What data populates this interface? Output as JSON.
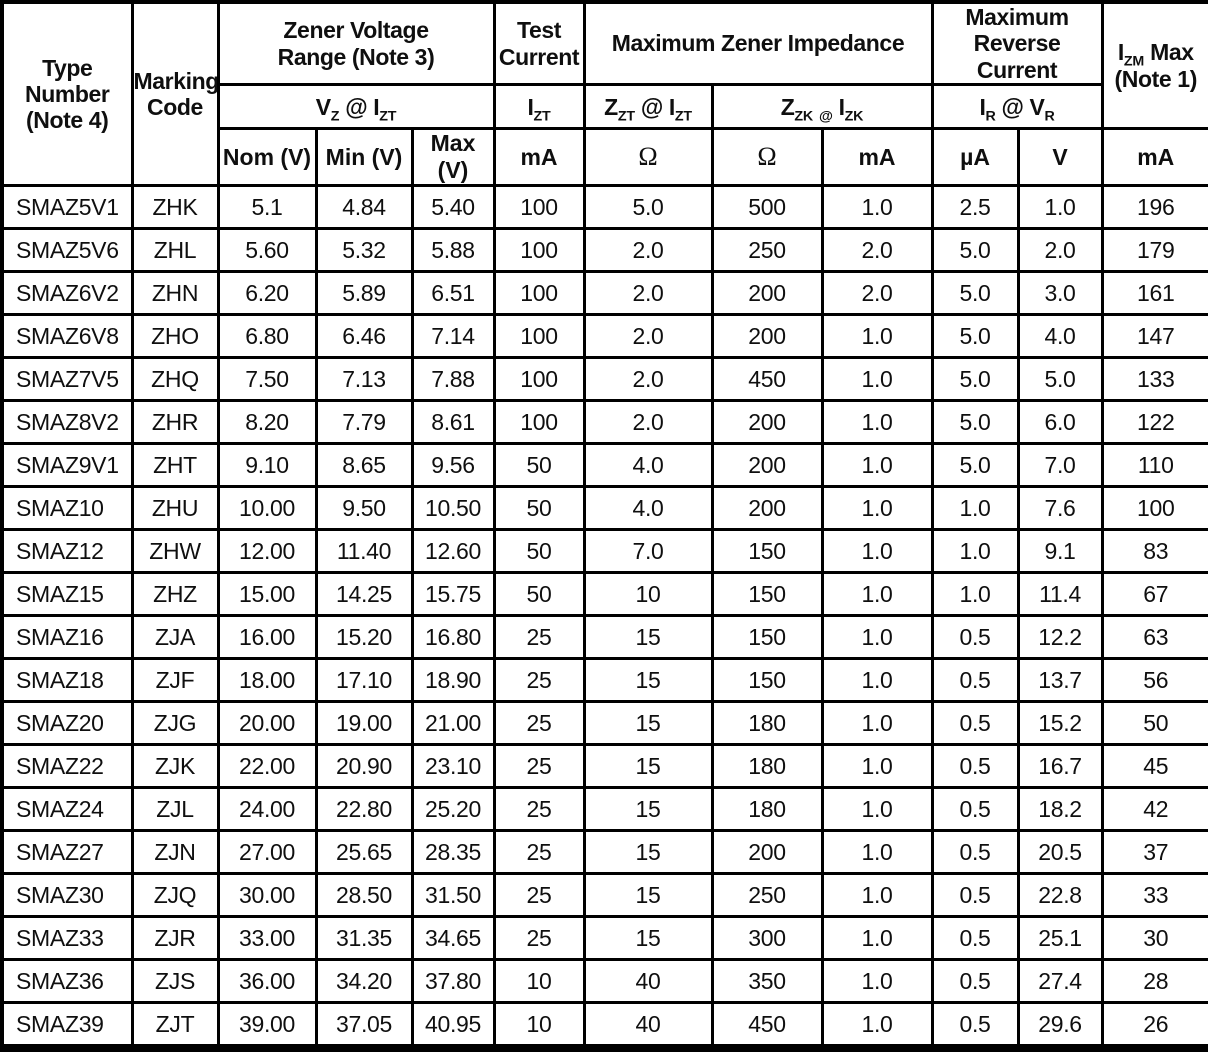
{
  "table": {
    "header": {
      "type_number": "Type\nNumber\n(Note 4)",
      "marking_code": "Marking\nCode",
      "zener_voltage_range": "Zener Voltage\nRange (Note 3)",
      "vz_at_izt": "V_{Z} @ I_{ZT}",
      "test_current": "Test\nCurrent",
      "izt": "I_{ZT}",
      "max_zener_impedance": "Maximum Zener Impedance",
      "zzt_at_izt": "Z_{ZT} @ I_{ZT}",
      "zzk_at_izk": "Z_{ZK} _{@} I_{ZK}",
      "max_reverse_current": "Maximum\nReverse Current",
      "ir_at_vr": "I_{R} @ V_{R}",
      "izm_max": "I_{ZM} Max\n(Note 1)",
      "units": [
        "Nom (V)",
        "Min (V)",
        "Max (V)",
        "mA",
        "Ω",
        "Ω",
        "mA",
        "µA",
        "V",
        "mA"
      ]
    },
    "rows": [
      [
        "SMAZ5V1",
        "ZHK",
        "5.1",
        "4.84",
        "5.40",
        "100",
        "5.0",
        "500",
        "1.0",
        "2.5",
        "1.0",
        "196"
      ],
      [
        "SMAZ5V6",
        "ZHL",
        "5.60",
        "5.32",
        "5.88",
        "100",
        "2.0",
        "250",
        "2.0",
        "5.0",
        "2.0",
        "179"
      ],
      [
        "SMAZ6V2",
        "ZHN",
        "6.20",
        "5.89",
        "6.51",
        "100",
        "2.0",
        "200",
        "2.0",
        "5.0",
        "3.0",
        "161"
      ],
      [
        "SMAZ6V8",
        "ZHO",
        "6.80",
        "6.46",
        "7.14",
        "100",
        "2.0",
        "200",
        "1.0",
        "5.0",
        "4.0",
        "147"
      ],
      [
        "SMAZ7V5",
        "ZHQ",
        "7.50",
        "7.13",
        "7.88",
        "100",
        "2.0",
        "450",
        "1.0",
        "5.0",
        "5.0",
        "133"
      ],
      [
        "SMAZ8V2",
        "ZHR",
        "8.20",
        "7.79",
        "8.61",
        "100",
        "2.0",
        "200",
        "1.0",
        "5.0",
        "6.0",
        "122"
      ],
      [
        "SMAZ9V1",
        "ZHT",
        "9.10",
        "8.65",
        "9.56",
        "50",
        "4.0",
        "200",
        "1.0",
        "5.0",
        "7.0",
        "110"
      ],
      [
        "SMAZ10",
        "ZHU",
        "10.00",
        "9.50",
        "10.50",
        "50",
        "4.0",
        "200",
        "1.0",
        "1.0",
        "7.6",
        "100"
      ],
      [
        "SMAZ12",
        "ZHW",
        "12.00",
        "11.40",
        "12.60",
        "50",
        "7.0",
        "150",
        "1.0",
        "1.0",
        "9.1",
        "83"
      ],
      [
        "SMAZ15",
        "ZHZ",
        "15.00",
        "14.25",
        "15.75",
        "50",
        "10",
        "150",
        "1.0",
        "1.0",
        "11.4",
        "67"
      ],
      [
        "SMAZ16",
        "ZJA",
        "16.00",
        "15.20",
        "16.80",
        "25",
        "15",
        "150",
        "1.0",
        "0.5",
        "12.2",
        "63"
      ],
      [
        "SMAZ18",
        "ZJF",
        "18.00",
        "17.10",
        "18.90",
        "25",
        "15",
        "150",
        "1.0",
        "0.5",
        "13.7",
        "56"
      ],
      [
        "SMAZ20",
        "ZJG",
        "20.00",
        "19.00",
        "21.00",
        "25",
        "15",
        "180",
        "1.0",
        "0.5",
        "15.2",
        "50"
      ],
      [
        "SMAZ22",
        "ZJK",
        "22.00",
        "20.90",
        "23.10",
        "25",
        "15",
        "180",
        "1.0",
        "0.5",
        "16.7",
        "45"
      ],
      [
        "SMAZ24",
        "ZJL",
        "24.00",
        "22.80",
        "25.20",
        "25",
        "15",
        "180",
        "1.0",
        "0.5",
        "18.2",
        "42"
      ],
      [
        "SMAZ27",
        "ZJN",
        "27.00",
        "25.65",
        "28.35",
        "25",
        "15",
        "200",
        "1.0",
        "0.5",
        "20.5",
        "37"
      ],
      [
        "SMAZ30",
        "ZJQ",
        "30.00",
        "28.50",
        "31.50",
        "25",
        "15",
        "250",
        "1.0",
        "0.5",
        "22.8",
        "33"
      ],
      [
        "SMAZ33",
        "ZJR",
        "33.00",
        "31.35",
        "34.65",
        "25",
        "15",
        "300",
        "1.0",
        "0.5",
        "25.1",
        "30"
      ],
      [
        "SMAZ36",
        "ZJS",
        "36.00",
        "34.20",
        "37.80",
        "10",
        "40",
        "350",
        "1.0",
        "0.5",
        "27.4",
        "28"
      ],
      [
        "SMAZ39",
        "ZJT",
        "39.00",
        "37.05",
        "40.95",
        "10",
        "40",
        "450",
        "1.0",
        "0.5",
        "29.6",
        "26"
      ]
    ]
  }
}
